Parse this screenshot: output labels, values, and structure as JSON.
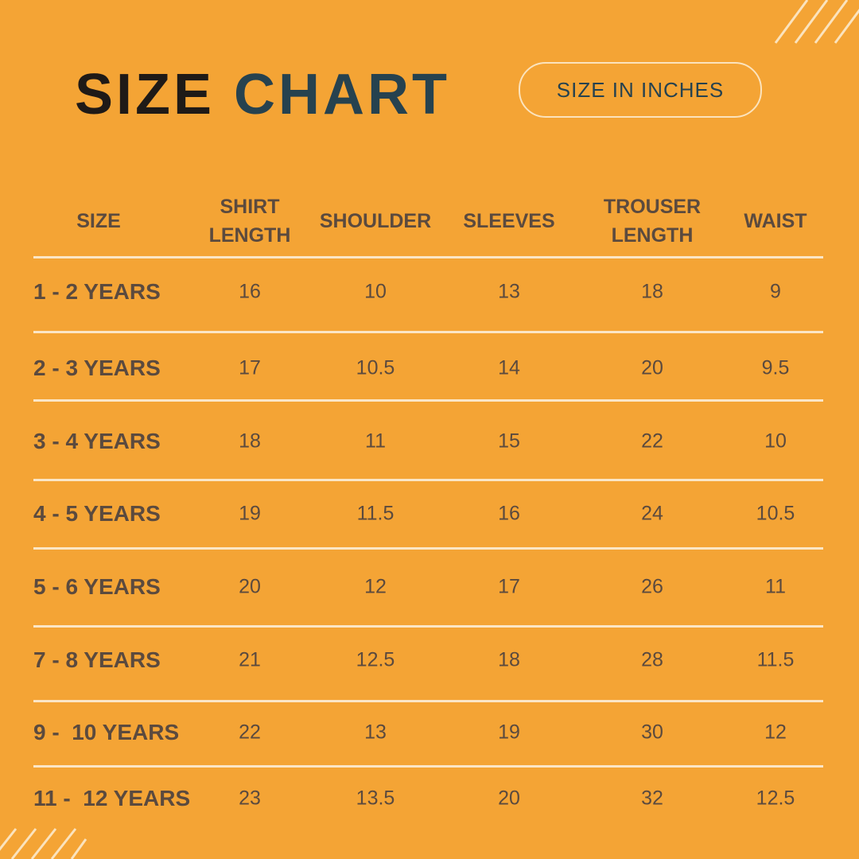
{
  "header": {
    "title_first": "SIZE",
    "title_second": "CHART",
    "badge": "SIZE IN INCHES"
  },
  "table": {
    "columns": [
      "SIZE",
      "SHIRT LENGTH",
      "SHOULDER",
      "SLEEVES",
      "TROUSER LENGTH",
      "WAIST"
    ],
    "rows": [
      [
        "1 - 2 YEARS",
        16,
        10,
        13,
        18,
        9
      ],
      [
        "2 - 3 YEARS",
        17,
        10.5,
        14,
        20,
        9.5
      ],
      [
        "3 - 4 YEARS",
        18,
        11,
        15,
        22,
        10
      ],
      [
        "4 - 5 YEARS",
        19,
        11.5,
        16,
        24,
        10.5
      ],
      [
        "5 - 6 YEARS",
        20,
        12,
        17,
        26,
        11
      ],
      [
        "7 - 8 YEARS",
        21,
        12.5,
        18,
        28,
        11.5
      ],
      [
        "9 -  10 YEARS",
        22,
        13,
        19,
        30,
        12
      ],
      [
        "11 -  12 YEARS",
        23,
        13.5,
        20,
        32,
        12.5
      ]
    ]
  }
}
